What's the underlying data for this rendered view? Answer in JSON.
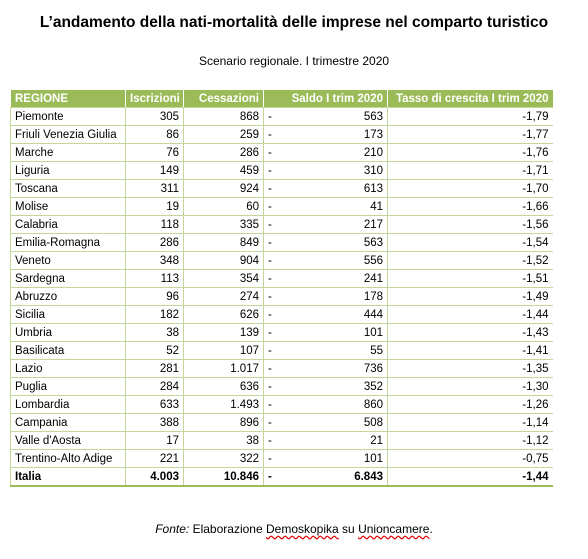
{
  "header": {
    "title": "L’andamento della nati-mortalità delle imprese nel comparto turistico",
    "subtitle": "Scenario regionale. I trimestre 2020"
  },
  "table": {
    "columns": [
      "REGIONE",
      "Iscrizioni",
      "Cessazioni",
      "Saldo I trim 2020",
      "Tasso di crescita I trim 2020"
    ],
    "rows": [
      [
        "Piemonte",
        "305",
        "868",
        "-",
        "563",
        "-1,79"
      ],
      [
        "Friuli Venezia Giulia",
        "86",
        "259",
        "-",
        "173",
        "-1,77"
      ],
      [
        "Marche",
        "76",
        "286",
        "-",
        "210",
        "-1,76"
      ],
      [
        "Liguria",
        "149",
        "459",
        "-",
        "310",
        "-1,71"
      ],
      [
        "Toscana",
        "311",
        "924",
        "-",
        "613",
        "-1,70"
      ],
      [
        "Molise",
        "19",
        "60",
        "-",
        "41",
        "-1,66"
      ],
      [
        "Calabria",
        "118",
        "335",
        "-",
        "217",
        "-1,56"
      ],
      [
        "Emilia-Romagna",
        "286",
        "849",
        "-",
        "563",
        "-1,54"
      ],
      [
        "Veneto",
        "348",
        "904",
        "-",
        "556",
        "-1,52"
      ],
      [
        "Sardegna",
        "113",
        "354",
        "-",
        "241",
        "-1,51"
      ],
      [
        "Abruzzo",
        "96",
        "274",
        "-",
        "178",
        "-1,49"
      ],
      [
        "Sicilia",
        "182",
        "626",
        "-",
        "444",
        "-1,44"
      ],
      [
        "Umbria",
        "38",
        "139",
        "-",
        "101",
        "-1,43"
      ],
      [
        "Basilicata",
        "52",
        "107",
        "-",
        "55",
        "-1,41"
      ],
      [
        "Lazio",
        "281",
        "1.017",
        "-",
        "736",
        "-1,35"
      ],
      [
        "Puglia",
        "284",
        "636",
        "-",
        "352",
        "-1,30"
      ],
      [
        "Lombardia",
        "633",
        "1.493",
        "-",
        "860",
        "-1,26"
      ],
      [
        "Campania",
        "388",
        "896",
        "-",
        "508",
        "-1,14"
      ],
      [
        "Valle d'Aosta",
        "17",
        "38",
        "-",
        "21",
        "-1,12"
      ],
      [
        "Trentino-Alto Adige",
        "221",
        "322",
        "-",
        "101",
        "-0,75"
      ]
    ],
    "total": [
      "Italia",
      "4.003",
      "10.846",
      "-",
      "6.843",
      "-1,44"
    ]
  },
  "footer": {
    "label": "Fonte:",
    "text": "Elaborazione",
    "source": "Demoskopika",
    "joiner": "su",
    "source2": "Unioncamere",
    "end": "."
  }
}
